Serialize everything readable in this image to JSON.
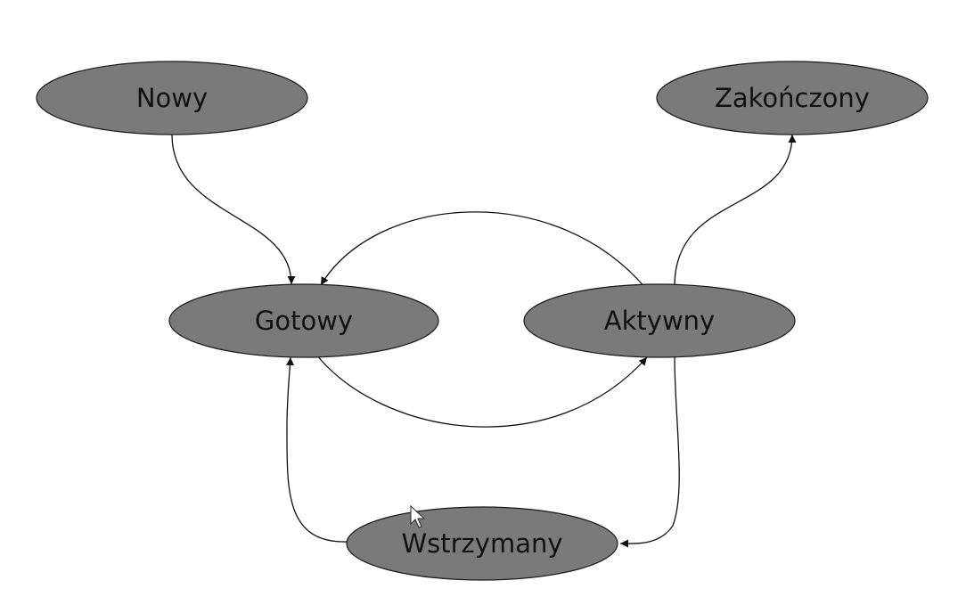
{
  "diagram": {
    "nodes": {
      "new": "Nowy",
      "finished": "Zakończony",
      "ready": "Gotowy",
      "active": "Aktywny",
      "suspended": "Wstrzymany"
    },
    "edges": [
      {
        "from": "Nowy",
        "to": "Gotowy"
      },
      {
        "from": "Aktywny",
        "to": "Zakończony"
      },
      {
        "from": "Aktywny",
        "to": "Gotowy"
      },
      {
        "from": "Gotowy",
        "to": "Aktywny"
      },
      {
        "from": "Aktywny",
        "to": "Wstrzymany"
      },
      {
        "from": "Wstrzymany",
        "to": "Gotowy"
      }
    ]
  },
  "colors": {
    "node_fill": "#7a7a7a",
    "node_stroke": "#1a1a1a",
    "edge": "#111111",
    "background": "#ffffff"
  }
}
